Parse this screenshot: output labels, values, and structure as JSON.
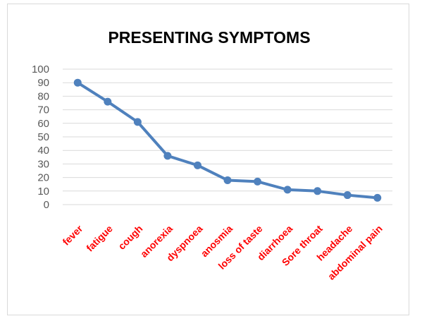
{
  "chart_data": {
    "type": "line",
    "title": "PRESENTING SYMPTOMS",
    "categories": [
      "fever",
      "fatigue",
      "cough",
      "anorexia",
      "dyspnoea",
      "anosmia",
      "loss of taste",
      "diarrhoea",
      "Sore throat",
      "headache",
      "abdominal  pain"
    ],
    "series": [
      {
        "values": [
          90,
          76,
          61,
          36,
          29,
          18,
          17,
          11,
          10,
          7,
          5
        ]
      }
    ],
    "ylim": [
      0,
      100
    ],
    "yticks": [
      100,
      90,
      80,
      70,
      60,
      50,
      40,
      30,
      20,
      10,
      0
    ],
    "grid": true,
    "legend": "none",
    "colors": {
      "line": "#4f81bd",
      "tick_label_x": "#ff0000",
      "tick_label_y": "#595959",
      "grid": "#d9d9d9"
    }
  }
}
